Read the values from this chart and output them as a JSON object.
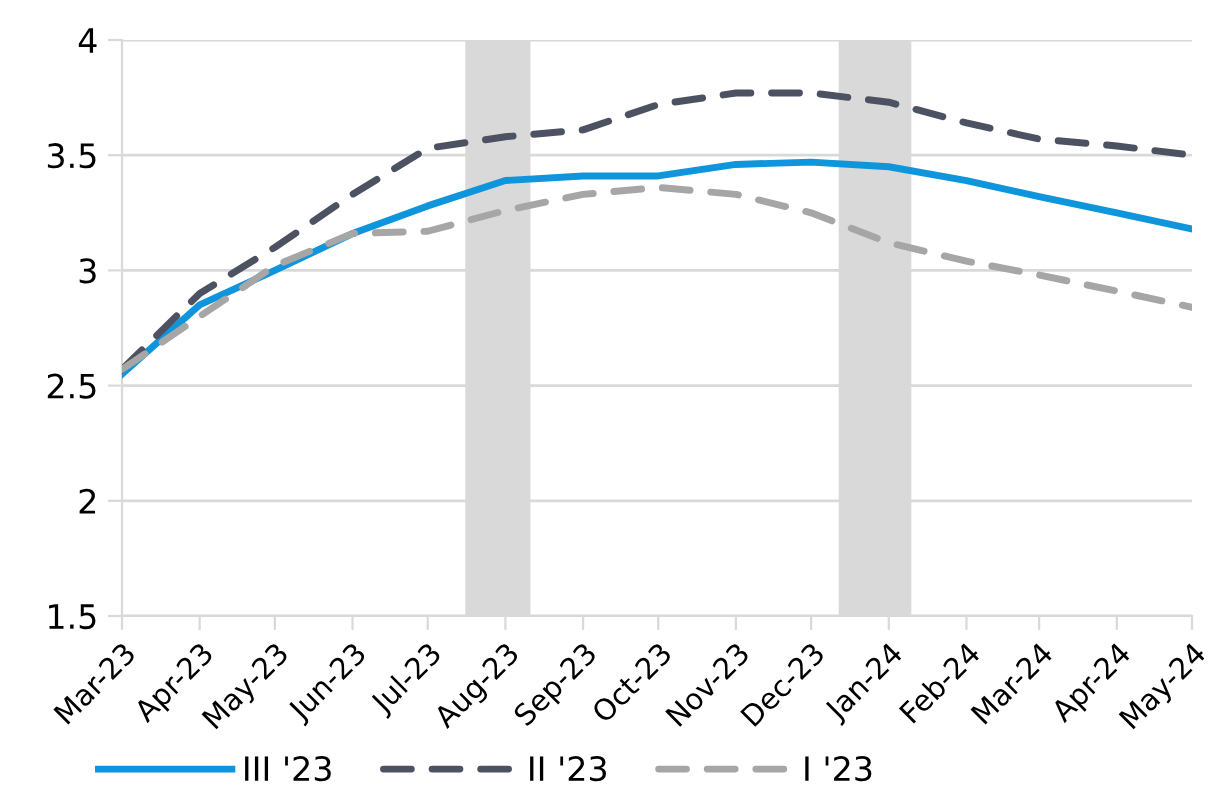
{
  "chart_data": {
    "type": "line",
    "x": [
      "2023-03",
      "2023-04",
      "2023-05",
      "2023-06",
      "2023-07",
      "2023-08",
      "2023-09",
      "2023-10",
      "2023-11",
      "2023-12",
      "2024-01",
      "2024-02",
      "2024-03",
      "2024-04",
      "2024-05"
    ],
    "series": [
      {
        "name": "III '23",
        "color": "#0f95db",
        "line_style": "solid",
        "values": [
          2.55,
          2.85,
          3.0,
          3.16,
          3.28,
          3.39,
          3.41,
          3.41,
          3.46,
          3.47,
          3.45,
          3.39,
          3.32,
          3.25,
          3.18
        ]
      },
      {
        "name": "II '23",
        "color": "#4d5263",
        "line_style": "dashed",
        "values": [
          2.57,
          2.9,
          3.1,
          3.33,
          3.53,
          3.58,
          3.61,
          3.72,
          3.77,
          3.77,
          3.73,
          3.64,
          3.57,
          3.54,
          3.5
        ]
      },
      {
        "name": "I '23",
        "color": "#a6a6a6",
        "line_style": "dashed",
        "values": [
          2.57,
          2.8,
          3.02,
          3.16,
          3.17,
          3.26,
          3.33,
          3.36,
          3.33,
          3.25,
          3.12,
          3.04,
          2.98,
          2.91,
          2.84
        ]
      }
    ],
    "xlim": [
      "2023-03",
      "2024-05"
    ],
    "xticks": [
      {
        "value": "2023-03",
        "label": "Mar-23"
      },
      {
        "value": "2023-04",
        "label": "Apr-23"
      },
      {
        "value": "2023-05",
        "label": "May-23"
      },
      {
        "value": "2023-06",
        "label": "Jun-23"
      },
      {
        "value": "2023-07",
        "label": "Jul-23"
      },
      {
        "value": "2023-08",
        "label": "Aug-23"
      },
      {
        "value": "2023-09",
        "label": "Sep-23"
      },
      {
        "value": "2023-10",
        "label": "Oct-23"
      },
      {
        "value": "2023-11",
        "label": "Nov-23"
      },
      {
        "value": "2023-12",
        "label": "Dec-23"
      },
      {
        "value": "2024-01",
        "label": "Jan-24"
      },
      {
        "value": "2024-02",
        "label": "Feb-24"
      },
      {
        "value": "2024-03",
        "label": "Mar-24"
      },
      {
        "value": "2024-04",
        "label": "Apr-24"
      },
      {
        "value": "2024-05",
        "label": "May-24"
      }
    ],
    "ylim": [
      1.5,
      4
    ],
    "yticks": [
      1.5,
      2,
      2.5,
      3,
      3.5,
      4
    ],
    "bands": [
      {
        "axis": "x",
        "from": "2023-07-16",
        "to": "2023-08-11",
        "color": "#d9d9d9"
      },
      {
        "axis": "x",
        "from": "2023-12-12",
        "to": "2024-01-10",
        "color": "#d9d9d9"
      }
    ],
    "grid": "y",
    "legend": "bottom"
  }
}
